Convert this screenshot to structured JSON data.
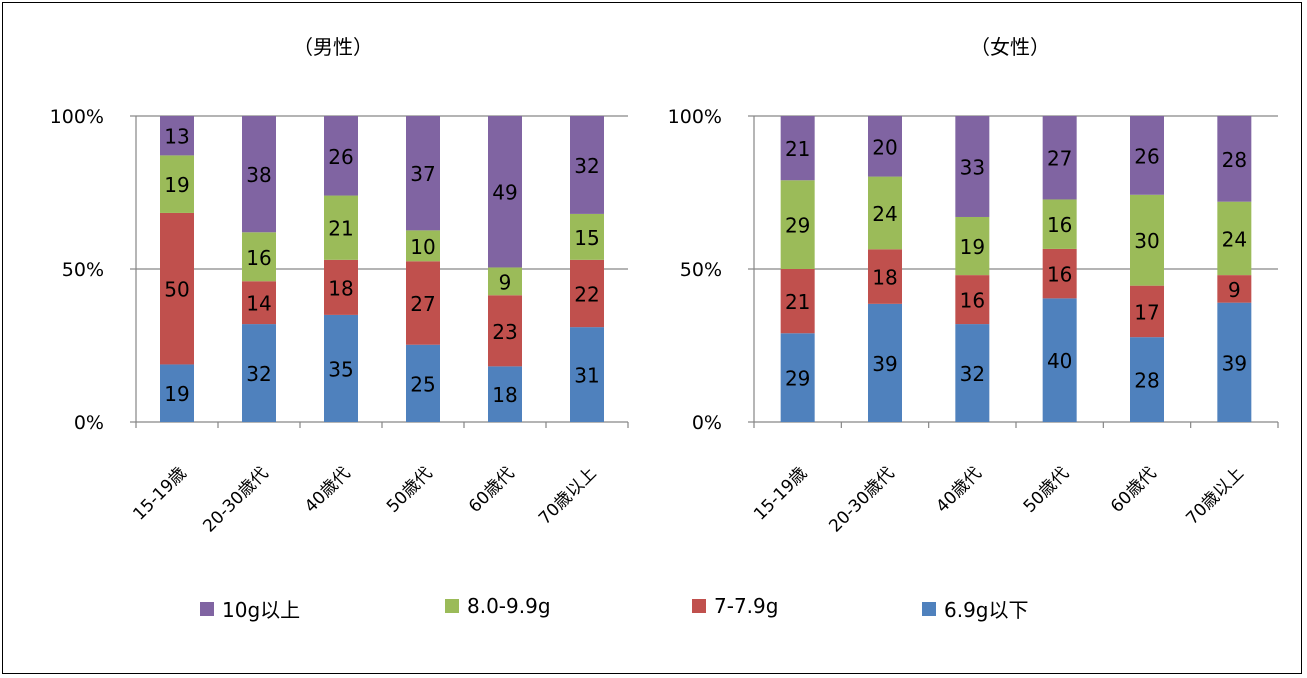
{
  "chart_data": [
    {
      "type": "bar",
      "stacked": true,
      "title": "（男性）",
      "categories": [
        "15-19歳",
        "20-30歳代",
        "40歳代",
        "50歳代",
        "60歳代",
        "70歳以上"
      ],
      "series": [
        {
          "name": "6.9g以下",
          "color": "#4f81bd",
          "values": [
            19,
            32,
            35,
            25,
            18,
            31
          ]
        },
        {
          "name": "7-7.9g",
          "color": "#c0504d",
          "values": [
            50,
            14,
            18,
            27,
            23,
            22
          ]
        },
        {
          "name": "8.0-9.9g",
          "color": "#9bbb59",
          "values": [
            19,
            16,
            21,
            10,
            9,
            15
          ]
        },
        {
          "name": "10g以上",
          "color": "#8064a2",
          "values": [
            13,
            38,
            26,
            37,
            49,
            32
          ]
        }
      ],
      "y_ticks": [
        "0%",
        "50%",
        "100%"
      ],
      "ylim": [
        0,
        100
      ],
      "grid": true
    },
    {
      "type": "bar",
      "stacked": true,
      "title": "（女性）",
      "categories": [
        "15-19歳",
        "20-30歳代",
        "40歳代",
        "50歳代",
        "60歳代",
        "70歳以上"
      ],
      "series": [
        {
          "name": "6.9g以下",
          "color": "#4f81bd",
          "values": [
            29,
            39,
            32,
            40,
            28,
            39
          ]
        },
        {
          "name": "7-7.9g",
          "color": "#c0504d",
          "values": [
            21,
            18,
            16,
            16,
            17,
            9
          ]
        },
        {
          "name": "8.0-9.9g",
          "color": "#9bbb59",
          "values": [
            29,
            24,
            19,
            16,
            30,
            24
          ]
        },
        {
          "name": "10g以上",
          "color": "#8064a2",
          "values": [
            21,
            20,
            33,
            27,
            26,
            28
          ]
        }
      ],
      "y_ticks": [
        "0%",
        "50%",
        "100%"
      ],
      "ylim": [
        0,
        100
      ],
      "grid": true
    }
  ],
  "legend": {
    "placement": "bottom",
    "items": [
      {
        "label": "10g以上",
        "color": "#8064a2"
      },
      {
        "label": "8.0-9.9g",
        "color": "#9bbb59"
      },
      {
        "label": "7-7.9g",
        "color": "#c0504d"
      },
      {
        "label": "6.9g以下",
        "color": "#4f81bd"
      }
    ]
  }
}
